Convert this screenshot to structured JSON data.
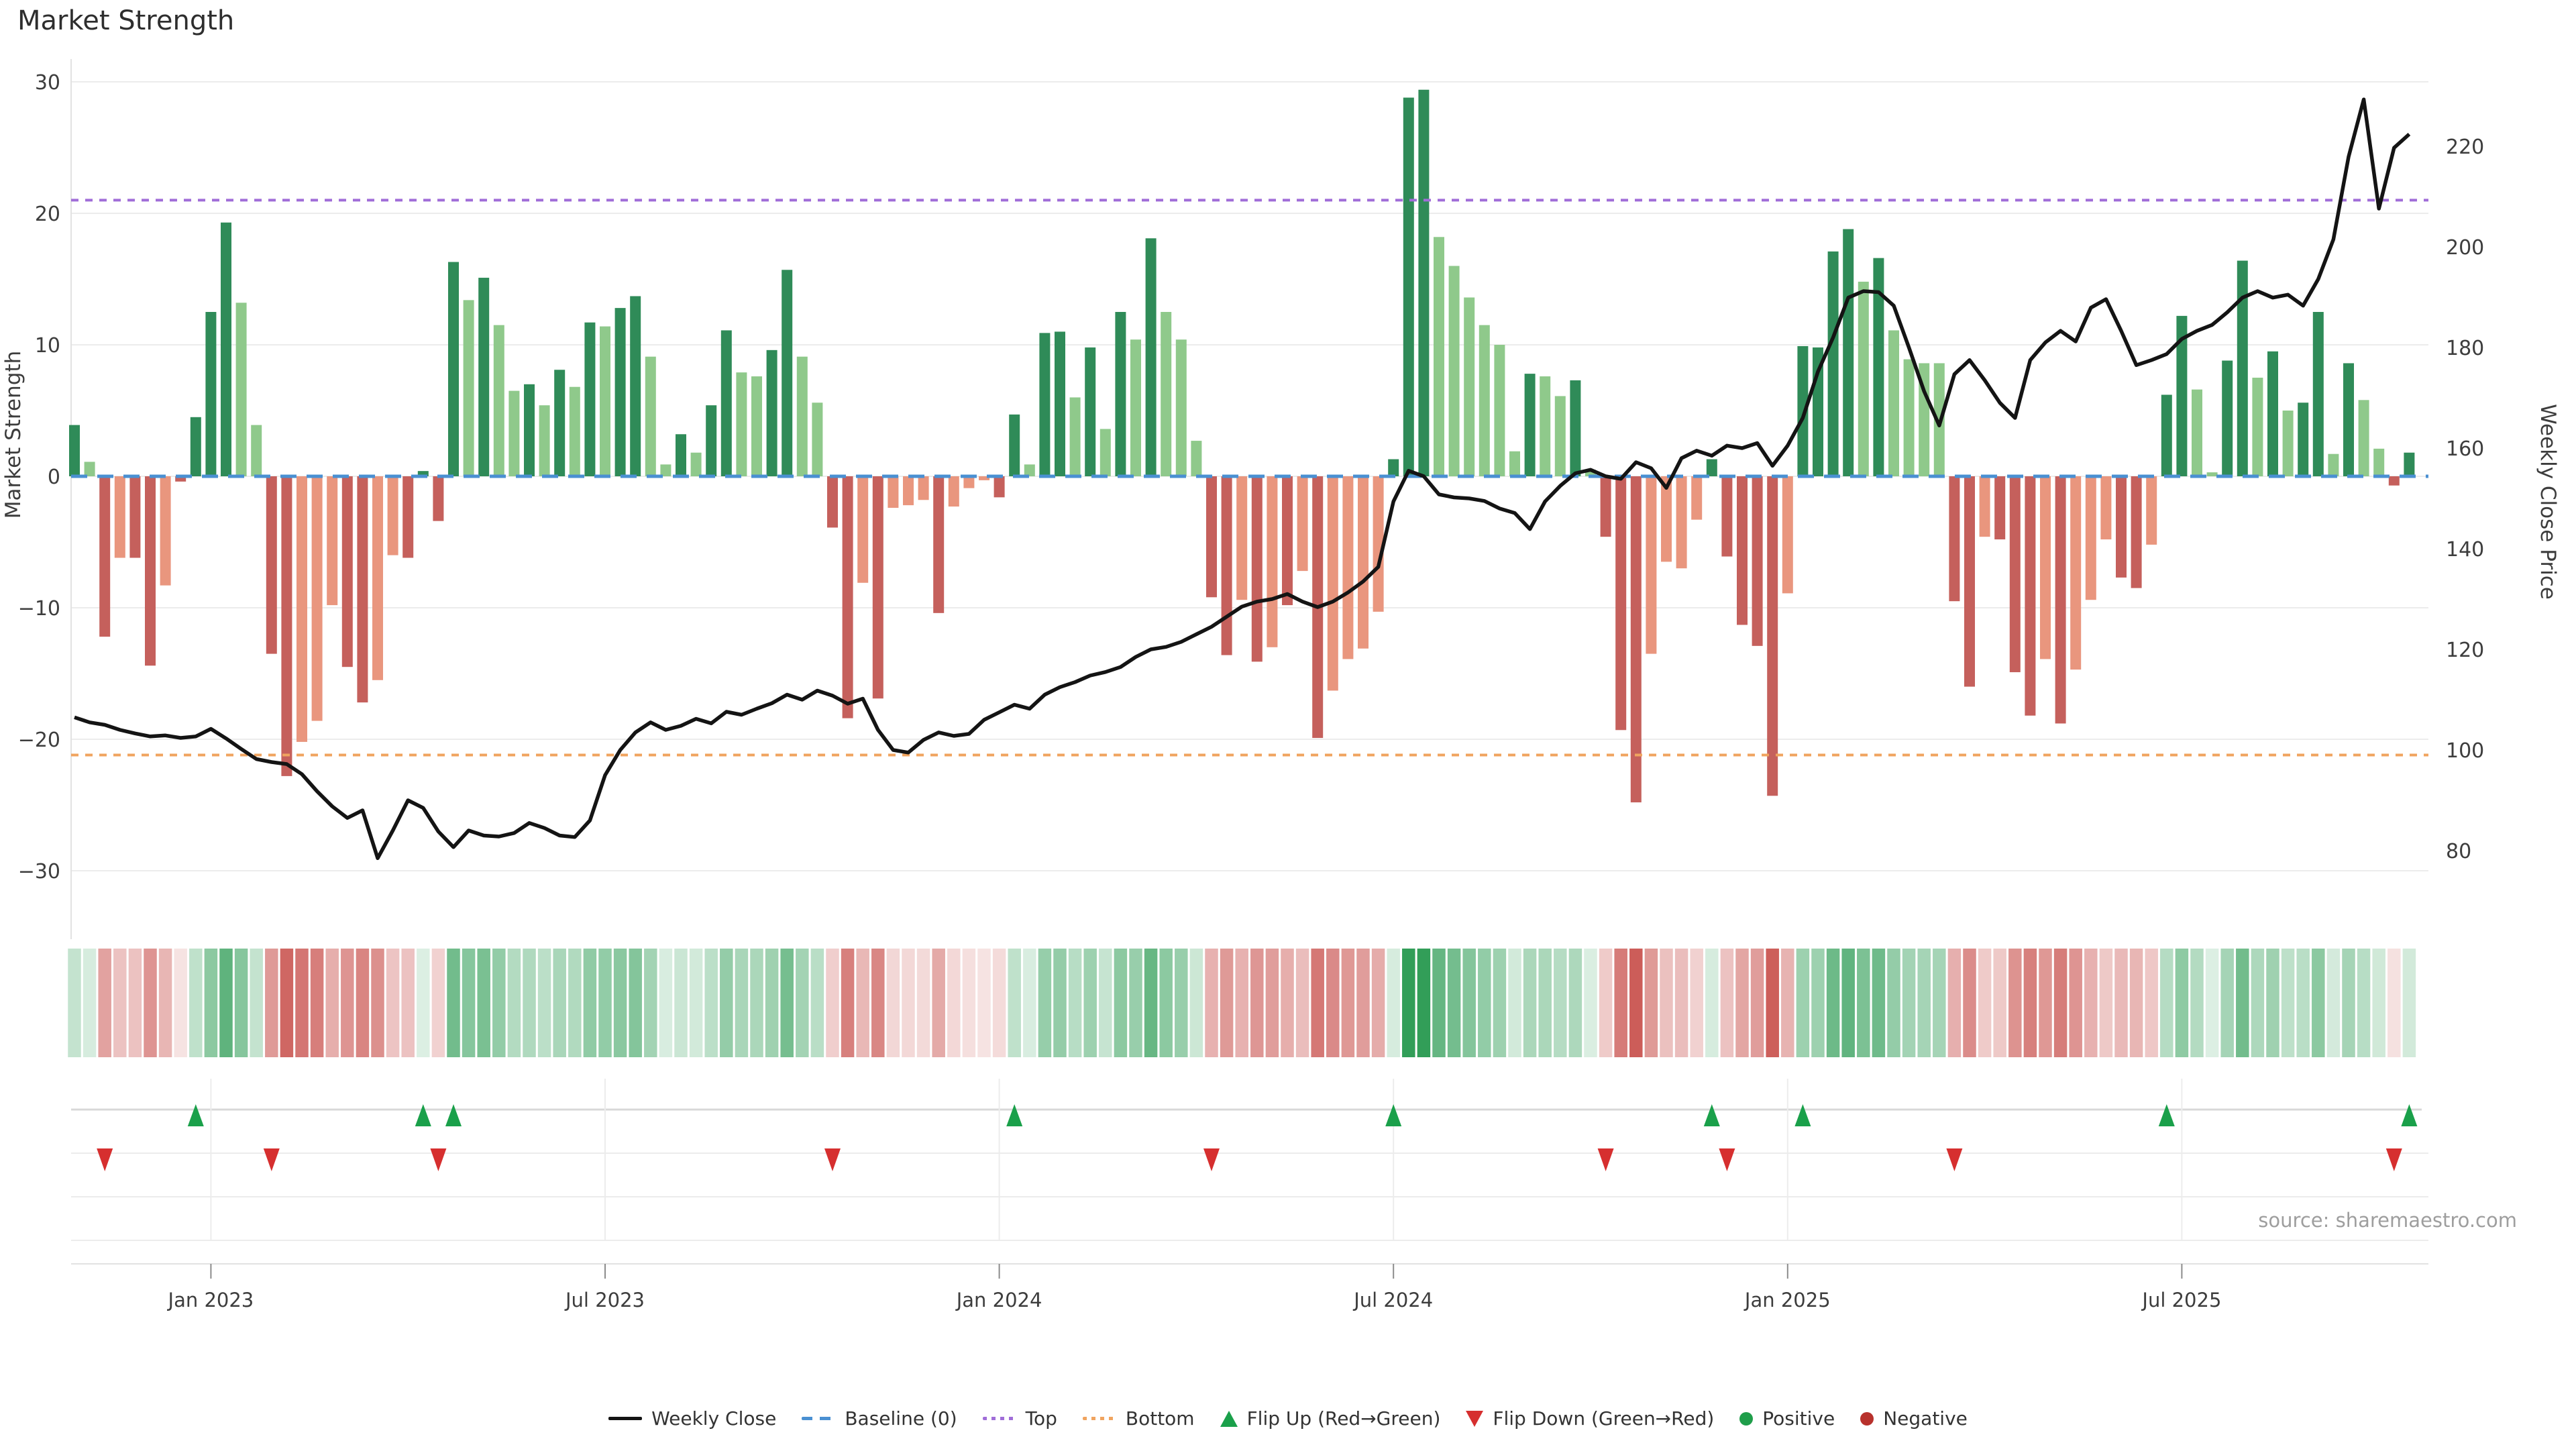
{
  "title": "Market Strength",
  "source_note": "source: sharemaestro.com",
  "colors": {
    "bar_shades": {
      "G": "#2f8b58",
      "g": "#8fc98b",
      "R": "#c5605c",
      "r": "#e9967e"
    },
    "weekly_close_line": "#141414",
    "baseline": "#4a90d2",
    "top_line": "#a06dd8",
    "bottom_line": "#f0a45f",
    "flip_up": "#1aa04a",
    "flip_down": "#d62f2f",
    "positive_dot": "#1f9e4a",
    "negative_dot": "#b8312c",
    "grid": "#ececec",
    "axis_text": "#3d3d3d",
    "heat_green": "50,158,88",
    "heat_red": "202,86,82"
  },
  "axes": {
    "left": {
      "label": "Market Strength",
      "ticks": [
        30,
        20,
        10,
        0,
        -10,
        -20,
        -30
      ]
    },
    "right": {
      "label": "Weekly Close Price",
      "ticks": [
        220,
        200,
        180,
        160,
        140,
        120,
        100,
        80
      ]
    },
    "x": {
      "ticks": [
        "Jan 2023",
        "Jul 2023",
        "Jan 2024",
        "Jul 2024",
        "Jan 2025",
        "Jul 2025"
      ],
      "tick_weeks": [
        9,
        35,
        61,
        87,
        113,
        139
      ]
    }
  },
  "legend": {
    "items": [
      {
        "label": "Weekly Close",
        "type": "line-solid",
        "color": "#141414"
      },
      {
        "label": "Baseline (0)",
        "type": "line-dashed",
        "color": "#4a90d2"
      },
      {
        "label": "Top",
        "type": "line-dotted",
        "color": "#a06dd8"
      },
      {
        "label": "Bottom",
        "type": "line-dotted",
        "color": "#f0a45f"
      },
      {
        "label": "Flip Up (Red→Green)",
        "type": "tri-up",
        "color": "#1aa04a"
      },
      {
        "label": "Flip Down (Green→Red)",
        "type": "tri-down",
        "color": "#d62f2f"
      },
      {
        "label": "Positive",
        "type": "dot",
        "color": "#1f9e4a"
      },
      {
        "label": "Negative",
        "type": "dot",
        "color": "#b8312c"
      }
    ]
  },
  "chart_data": {
    "type": "bar",
    "note": "weekly data, ~Nov 2022 to Nov 2025; bars = Market Strength (left axis, shade key: G dark-green, g light-green, R dark-red, r light-salmon); line = Weekly Close price (right axis); heat strip mirrors bar sign/intensity",
    "baselines": {
      "baseline": 0,
      "top": 21.0,
      "bottom": -21.2
    },
    "left_axis_range": [
      -32,
      32
    ],
    "right_axis_range": [
      74,
      232
    ],
    "strength_bars": [
      [
        3.9,
        "G"
      ],
      [
        1.1,
        "g"
      ],
      [
        -12.2,
        "R"
      ],
      [
        -6.2,
        "r"
      ],
      [
        -6.2,
        "R"
      ],
      [
        -14.4,
        "R"
      ],
      [
        -8.3,
        "r"
      ],
      [
        -0.4,
        "R"
      ],
      [
        4.5,
        "G"
      ],
      [
        12.5,
        "G"
      ],
      [
        19.3,
        "G"
      ],
      [
        13.2,
        "g"
      ],
      [
        3.9,
        "g"
      ],
      [
        -13.5,
        "R"
      ],
      [
        -22.8,
        "R"
      ],
      [
        -20.2,
        "r"
      ],
      [
        -18.6,
        "r"
      ],
      [
        -9.8,
        "r"
      ],
      [
        -14.5,
        "R"
      ],
      [
        -17.2,
        "R"
      ],
      [
        -15.5,
        "r"
      ],
      [
        -6,
        "r"
      ],
      [
        -6.2,
        "R"
      ],
      [
        0.4,
        "G"
      ],
      [
        -3.4,
        "R"
      ],
      [
        16.3,
        "G"
      ],
      [
        13.4,
        "g"
      ],
      [
        15.1,
        "G"
      ],
      [
        11.5,
        "g"
      ],
      [
        6.5,
        "g"
      ],
      [
        7,
        "G"
      ],
      [
        5.4,
        "g"
      ],
      [
        8.1,
        "G"
      ],
      [
        6.8,
        "g"
      ],
      [
        11.7,
        "G"
      ],
      [
        11.4,
        "g"
      ],
      [
        12.8,
        "G"
      ],
      [
        13.7,
        "G"
      ],
      [
        9.1,
        "g"
      ],
      [
        0.9,
        "g"
      ],
      [
        3.2,
        "G"
      ],
      [
        1.8,
        "g"
      ],
      [
        5.4,
        "G"
      ],
      [
        11.1,
        "G"
      ],
      [
        7.9,
        "g"
      ],
      [
        7.6,
        "g"
      ],
      [
        9.6,
        "G"
      ],
      [
        15.7,
        "G"
      ],
      [
        9.1,
        "g"
      ],
      [
        5.6,
        "g"
      ],
      [
        -3.9,
        "R"
      ],
      [
        -18.4,
        "R"
      ],
      [
        -8.1,
        "r"
      ],
      [
        -16.9,
        "R"
      ],
      [
        -2.4,
        "r"
      ],
      [
        -2.2,
        "r"
      ],
      [
        -1.8,
        "r"
      ],
      [
        -10.4,
        "R"
      ],
      [
        -2.3,
        "r"
      ],
      [
        -0.9,
        "r"
      ],
      [
        -0.3,
        "r"
      ],
      [
        -1.6,
        "R"
      ],
      [
        4.7,
        "G"
      ],
      [
        0.9,
        "g"
      ],
      [
        10.9,
        "G"
      ],
      [
        11,
        "G"
      ],
      [
        6,
        "g"
      ],
      [
        9.8,
        "G"
      ],
      [
        3.6,
        "g"
      ],
      [
        12.5,
        "G"
      ],
      [
        10.4,
        "g"
      ],
      [
        18.1,
        "G"
      ],
      [
        12.5,
        "g"
      ],
      [
        10.4,
        "g"
      ],
      [
        2.7,
        "g"
      ],
      [
        -9.2,
        "R"
      ],
      [
        -13.6,
        "R"
      ],
      [
        -9.4,
        "r"
      ],
      [
        -14.1,
        "R"
      ],
      [
        -13,
        "r"
      ],
      [
        -9.8,
        "R"
      ],
      [
        -7.2,
        "r"
      ],
      [
        -19.9,
        "R"
      ],
      [
        -16.3,
        "r"
      ],
      [
        -13.9,
        "r"
      ],
      [
        -13.1,
        "r"
      ],
      [
        -10.3,
        "r"
      ],
      [
        1.3,
        "G"
      ],
      [
        28.8,
        "G"
      ],
      [
        29.4,
        "G"
      ],
      [
        18.2,
        "g"
      ],
      [
        16,
        "g"
      ],
      [
        13.6,
        "g"
      ],
      [
        11.5,
        "g"
      ],
      [
        10,
        "g"
      ],
      [
        1.9,
        "g"
      ],
      [
        7.8,
        "G"
      ],
      [
        7.6,
        "g"
      ],
      [
        6.1,
        "g"
      ],
      [
        7.3,
        "G"
      ],
      [
        0.5,
        "g"
      ],
      [
        -4.6,
        "R"
      ],
      [
        -19.3,
        "R"
      ],
      [
        -24.8,
        "R"
      ],
      [
        -13.5,
        "r"
      ],
      [
        -6.5,
        "r"
      ],
      [
        -7,
        "r"
      ],
      [
        -3.3,
        "r"
      ],
      [
        1.3,
        "G"
      ],
      [
        -6.1,
        "R"
      ],
      [
        -11.3,
        "R"
      ],
      [
        -12.9,
        "R"
      ],
      [
        -24.3,
        "R"
      ],
      [
        -8.9,
        "r"
      ],
      [
        9.9,
        "G"
      ],
      [
        9.8,
        "G"
      ],
      [
        17.1,
        "G"
      ],
      [
        18.8,
        "G"
      ],
      [
        14.8,
        "g"
      ],
      [
        16.6,
        "G"
      ],
      [
        11.1,
        "g"
      ],
      [
        8.9,
        "g"
      ],
      [
        8.6,
        "g"
      ],
      [
        8.6,
        "g"
      ],
      [
        -9.5,
        "R"
      ],
      [
        -16,
        "R"
      ],
      [
        -4.6,
        "r"
      ],
      [
        -4.8,
        "R"
      ],
      [
        -14.9,
        "R"
      ],
      [
        -18.2,
        "R"
      ],
      [
        -13.9,
        "r"
      ],
      [
        -18.8,
        "R"
      ],
      [
        -14.7,
        "r"
      ],
      [
        -9.4,
        "r"
      ],
      [
        -4.8,
        "r"
      ],
      [
        -7.7,
        "R"
      ],
      [
        -8.5,
        "R"
      ],
      [
        -5.2,
        "r"
      ],
      [
        6.2,
        "G"
      ],
      [
        12.2,
        "G"
      ],
      [
        6.6,
        "g"
      ],
      [
        0.3,
        "g"
      ],
      [
        8.8,
        "G"
      ],
      [
        16.4,
        "G"
      ],
      [
        7.5,
        "g"
      ],
      [
        9.5,
        "G"
      ],
      [
        5,
        "g"
      ],
      [
        5.6,
        "G"
      ],
      [
        12.5,
        "G"
      ],
      [
        1.7,
        "g"
      ],
      [
        8.6,
        "G"
      ],
      [
        5.8,
        "g"
      ],
      [
        2.1,
        "g"
      ],
      [
        -0.7,
        "R"
      ],
      [
        1.8,
        "G"
      ]
    ],
    "weekly_close": [
      106.5,
      105.5,
      105,
      104,
      103.3,
      102.7,
      102.9,
      102.4,
      102.7,
      104.2,
      102.3,
      100.2,
      98.2,
      97.6,
      97.2,
      95.2,
      91.8,
      88.8,
      86.5,
      88,
      78.5,
      84,
      90,
      88.5,
      83.8,
      80.7,
      84,
      83,
      82.8,
      83.5,
      85.5,
      84.5,
      83,
      82.7,
      86,
      95,
      100,
      103.5,
      105.5,
      104,
      104.8,
      106.2,
      105.3,
      107.6,
      107,
      108.2,
      109.3,
      111,
      110,
      111.8,
      110.8,
      109.2,
      110.2,
      104,
      100,
      99.5,
      102,
      103.5,
      102.8,
      103.2,
      106,
      107.5,
      109,
      108.2,
      111,
      112.5,
      113.5,
      114.8,
      115.5,
      116.5,
      118.5,
      120,
      120.5,
      121.5,
      123,
      124.5,
      126.5,
      128.5,
      129.5,
      130,
      131,
      129.5,
      128.4,
      129.5,
      131.3,
      133.5,
      136.4,
      149.4,
      155.5,
      154.4,
      150.8,
      150.2,
      150,
      149.5,
      148,
      147.1,
      143.9,
      149.4,
      152.5,
      155,
      155.7,
      154.4,
      153.9,
      157.2,
      156,
      152.1,
      158,
      159.5,
      158.5,
      160.5,
      160,
      161,
      156.5,
      160.5,
      166,
      175.2,
      182,
      189.9,
      191.2,
      191,
      188.3,
      180,
      171.3,
      164.5,
      174.7,
      177.5,
      173.5,
      169,
      166,
      177.5,
      181,
      183.3,
      181.2,
      187.9,
      189.6,
      183.3,
      176.5,
      177.5,
      178.7,
      181.7,
      183.3,
      184.5,
      187,
      189.9,
      191.2,
      189.9,
      190.5,
      188.3,
      193.6,
      201.5,
      217.9,
      229.3,
      207.6,
      219.7,
      222.4
    ],
    "flip_up_weeks": [
      8,
      23,
      25,
      62,
      87,
      108,
      114,
      138,
      154
    ],
    "flip_down_weeks": [
      2,
      13,
      24,
      50,
      75,
      101,
      109,
      124,
      153
    ]
  }
}
